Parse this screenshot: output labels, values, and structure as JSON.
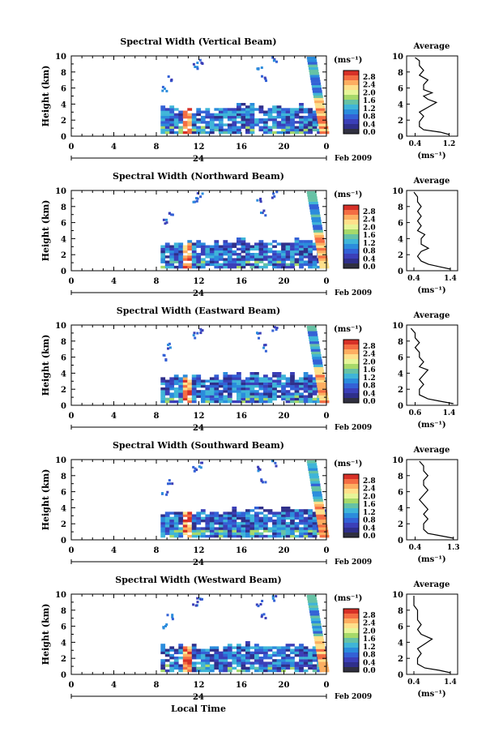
{
  "figure": {
    "xlabel": "Local Time",
    "date_label": "Feb 2009",
    "day_label": "24"
  },
  "colorbar": {
    "unit_label": "(ms⁻¹)",
    "ticks": [
      "2.8",
      "2.4",
      "2.0",
      "1.6",
      "1.2",
      "0.8",
      "0.4",
      "0.0"
    ],
    "colors": [
      "#d73027",
      "#f46d43",
      "#fdae61",
      "#fee08b",
      "#e6f598",
      "#a6d96a",
      "#66c2a5",
      "#3fb5d8",
      "#2b8cdc",
      "#3361d6",
      "#3b3fb8",
      "#2f2f8a",
      "#303040"
    ]
  },
  "chart_data": [
    {
      "type": "heatmap",
      "title": "Spectral Width (Vertical Beam)",
      "ylabel": "Height (km)",
      "xlabel": "",
      "x_ticks": [
        "0",
        "4",
        "8",
        "12",
        "16",
        "20",
        "0"
      ],
      "y_ticks": [
        "0",
        "2",
        "4",
        "6",
        "8",
        "10"
      ],
      "ylim": [
        0,
        10
      ],
      "avg_title": "Average",
      "avg_xlabel": "(ms⁻¹)",
      "avg_x_ticks": [
        "0.4",
        "1.2"
      ],
      "avg_xlim": [
        0.2,
        1.4
      ],
      "avg_profile": [
        [
          1.2,
          0.2
        ],
        [
          1.0,
          0.5
        ],
        [
          0.6,
          0.8
        ],
        [
          0.5,
          1.2
        ],
        [
          0.5,
          1.8
        ],
        [
          0.6,
          2.5
        ],
        [
          0.5,
          3.0
        ],
        [
          0.7,
          3.6
        ],
        [
          0.9,
          4.2
        ],
        [
          0.7,
          4.6
        ],
        [
          0.6,
          5.0
        ],
        [
          0.8,
          5.4
        ],
        [
          0.6,
          5.8
        ],
        [
          0.6,
          6.4
        ],
        [
          0.7,
          7.0
        ],
        [
          0.5,
          7.6
        ],
        [
          0.6,
          8.2
        ],
        [
          0.5,
          8.8
        ],
        [
          0.5,
          9.4
        ],
        [
          0.4,
          9.8
        ]
      ]
    },
    {
      "type": "heatmap",
      "title": "Spectral Width (Northward Beam)",
      "ylabel": "Height (km)",
      "xlabel": "",
      "x_ticks": [
        "0",
        "4",
        "8",
        "12",
        "16",
        "20",
        "0"
      ],
      "y_ticks": [
        "0",
        "2",
        "4",
        "6",
        "8",
        "10"
      ],
      "ylim": [
        0,
        10
      ],
      "avg_title": "Average",
      "avg_xlabel": "(ms⁻¹)",
      "avg_x_ticks": [
        "0.4",
        "1.4"
      ],
      "avg_xlim": [
        0.2,
        1.6
      ],
      "avg_profile": [
        [
          1.4,
          0.2
        ],
        [
          1.1,
          0.5
        ],
        [
          0.8,
          0.8
        ],
        [
          0.6,
          1.2
        ],
        [
          0.5,
          1.8
        ],
        [
          0.6,
          2.4
        ],
        [
          0.8,
          2.8
        ],
        [
          0.6,
          3.3
        ],
        [
          0.6,
          4.0
        ],
        [
          0.7,
          4.5
        ],
        [
          0.5,
          5.0
        ],
        [
          0.6,
          5.6
        ],
        [
          0.5,
          6.2
        ],
        [
          0.6,
          6.8
        ],
        [
          0.5,
          7.4
        ],
        [
          0.6,
          8.0
        ],
        [
          0.5,
          8.6
        ],
        [
          0.5,
          9.2
        ],
        [
          0.4,
          9.8
        ]
      ]
    },
    {
      "type": "heatmap",
      "title": "Spectral Width (Eastward Beam)",
      "ylabel": "Height (km)",
      "xlabel": "",
      "x_ticks": [
        "0",
        "4",
        "8",
        "12",
        "16",
        "20",
        "0"
      ],
      "y_ticks": [
        "0",
        "2",
        "4",
        "6",
        "8",
        "10"
      ],
      "ylim": [
        0,
        10
      ],
      "avg_title": "Average",
      "avg_xlabel": "(ms⁻¹)",
      "avg_x_ticks": [
        "0.6",
        "1.4"
      ],
      "avg_xlim": [
        0.4,
        1.6
      ],
      "avg_profile": [
        [
          1.5,
          0.2
        ],
        [
          1.2,
          0.5
        ],
        [
          0.9,
          0.8
        ],
        [
          0.7,
          1.3
        ],
        [
          0.7,
          2.0
        ],
        [
          0.8,
          2.6
        ],
        [
          0.7,
          3.2
        ],
        [
          0.8,
          3.8
        ],
        [
          0.9,
          4.4
        ],
        [
          0.7,
          4.8
        ],
        [
          0.8,
          5.4
        ],
        [
          0.7,
          6.0
        ],
        [
          0.7,
          6.6
        ],
        [
          0.6,
          7.2
        ],
        [
          0.7,
          7.8
        ],
        [
          0.6,
          8.4
        ],
        [
          0.6,
          9.0
        ],
        [
          0.5,
          9.6
        ]
      ]
    },
    {
      "type": "heatmap",
      "title": "Spectral Width (Southward Beam)",
      "ylabel": "Height (km)",
      "xlabel": "",
      "x_ticks": [
        "0",
        "4",
        "8",
        "12",
        "16",
        "20",
        "0"
      ],
      "y_ticks": [
        "0",
        "2",
        "4",
        "6",
        "8",
        "10"
      ],
      "ylim": [
        0,
        10
      ],
      "avg_title": "Average",
      "avg_xlabel": "(ms⁻¹)",
      "avg_x_ticks": [
        "0.4",
        "1.3"
      ],
      "avg_xlim": [
        0.2,
        1.4
      ],
      "avg_profile": [
        [
          1.3,
          0.2
        ],
        [
          1.0,
          0.5
        ],
        [
          0.7,
          0.8
        ],
        [
          0.6,
          1.3
        ],
        [
          0.6,
          2.0
        ],
        [
          0.7,
          2.6
        ],
        [
          0.6,
          3.2
        ],
        [
          0.7,
          3.8
        ],
        [
          0.6,
          4.4
        ],
        [
          0.5,
          5.0
        ],
        [
          0.6,
          5.6
        ],
        [
          0.7,
          6.2
        ],
        [
          0.6,
          6.8
        ],
        [
          0.6,
          7.4
        ],
        [
          0.7,
          8.0
        ],
        [
          0.6,
          8.6
        ],
        [
          0.6,
          9.2
        ],
        [
          0.5,
          9.8
        ]
      ]
    },
    {
      "type": "heatmap",
      "title": "Spectral Width (Westward Beam)",
      "ylabel": "Height (km)",
      "xlabel": "",
      "x_ticks": [
        "0",
        "4",
        "8",
        "12",
        "16",
        "20",
        "0"
      ],
      "y_ticks": [
        "0",
        "2",
        "4",
        "6",
        "8",
        "10"
      ],
      "ylim": [
        0,
        10
      ],
      "avg_title": "Average",
      "avg_xlabel": "(ms⁻¹)",
      "avg_x_ticks": [
        "0.4",
        "1.4"
      ],
      "avg_xlim": [
        0.2,
        1.6
      ],
      "avg_profile": [
        [
          1.4,
          0.2
        ],
        [
          1.1,
          0.5
        ],
        [
          0.7,
          0.8
        ],
        [
          0.5,
          1.3
        ],
        [
          0.5,
          2.0
        ],
        [
          0.6,
          2.6
        ],
        [
          0.5,
          3.2
        ],
        [
          0.7,
          3.8
        ],
        [
          0.9,
          4.4
        ],
        [
          0.6,
          5.0
        ],
        [
          0.5,
          5.6
        ],
        [
          0.6,
          6.2
        ],
        [
          0.5,
          6.8
        ],
        [
          0.5,
          7.4
        ],
        [
          0.5,
          8.0
        ],
        [
          0.4,
          8.6
        ],
        [
          0.4,
          9.2
        ],
        [
          0.4,
          9.8
        ]
      ]
    }
  ]
}
